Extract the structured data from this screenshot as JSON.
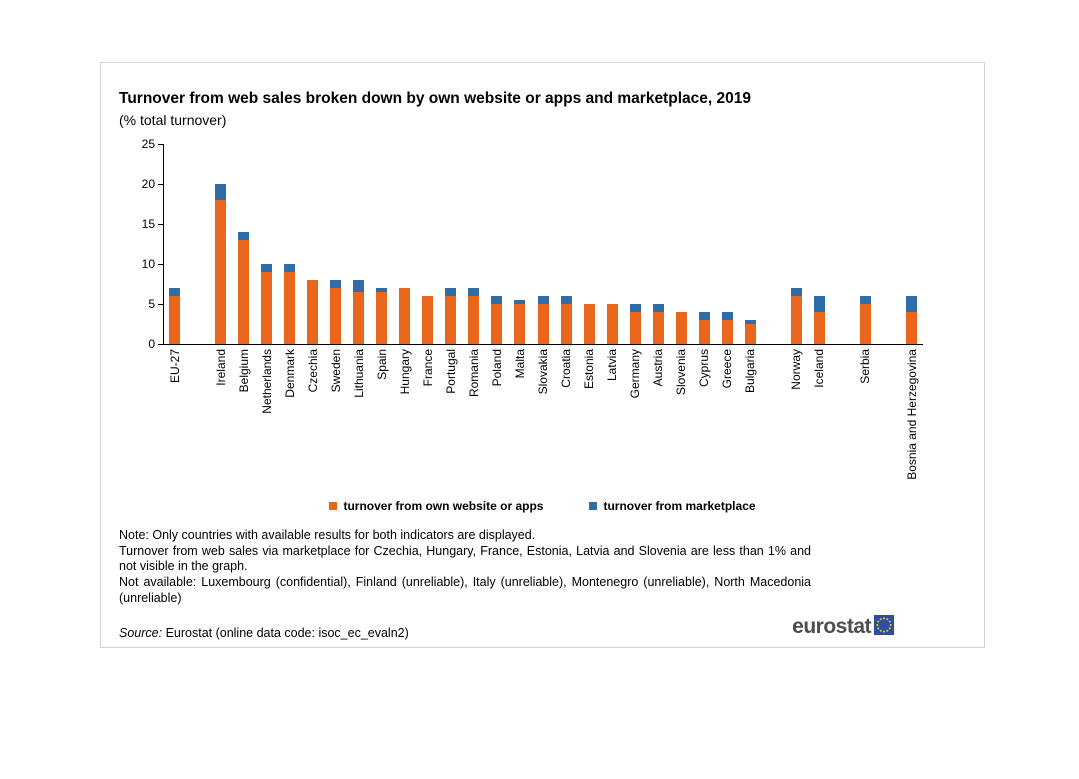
{
  "title": "Turnover from web sales broken down by own website or apps and marketplace, 2019",
  "subtitle": "(% total turnover)",
  "notes": [
    "Note: Only countries with available results for both indicators are displayed.",
    "Turnover from web sales via marketplace for Czechia, Hungary, France, Estonia, Latvia and Slovenia are less than 1% and not visible in the graph.",
    "Not available: Luxembourg (confidential), Finland (unreliable), Italy (unreliable), Montenegro (unreliable), North Macedonia (unreliable)"
  ],
  "source": {
    "prefix": "Source:",
    "text": " Eurostat (online data code: isoc_ec_evaln2)"
  },
  "logo": {
    "text": "eurostat",
    "flag_color": "#2B4EA2",
    "star_color": "#FFCC00"
  },
  "chart_data": {
    "type": "bar",
    "stacked": true,
    "title": "Turnover from web sales broken down by own website or apps and marketplace, 2019",
    "subtitle": "(% total turnover)",
    "ylim": [
      0,
      25
    ],
    "yticks": [
      0,
      5,
      10,
      15,
      20,
      25
    ],
    "grid": false,
    "legend_position": "bottom",
    "categories": [
      "EU-27",
      "",
      "Ireland",
      "Belgium",
      "Netherlands",
      "Denmark",
      "Czechia",
      "Sweden",
      "Lithuania",
      "Spain",
      "Hungary",
      "France",
      "Portugal",
      "Romania",
      "Poland",
      "Malta",
      "Slovakia",
      "Croatia",
      "Estonia",
      "Latvia",
      "Germany",
      "Austria",
      "Slovenia",
      "Cyprus",
      "Greece",
      "Bulgaria",
      "",
      "Norway",
      "Iceland",
      "",
      "Serbia",
      "",
      "Bosnia and Herzegovina"
    ],
    "series": [
      {
        "name": "turnover from own website or apps",
        "color": "#EA661C",
        "values": [
          6,
          null,
          18,
          13,
          9,
          9,
          8,
          7,
          6.5,
          6.5,
          7,
          6,
          6,
          6,
          5,
          5,
          5,
          5,
          5,
          5,
          4,
          4,
          4,
          3,
          3,
          2.5,
          null,
          6,
          4,
          null,
          5,
          null,
          4
        ]
      },
      {
        "name": "turnover from marketplace",
        "color": "#2F6DA4",
        "values": [
          1,
          null,
          2,
          1,
          1,
          1,
          0,
          1,
          1.5,
          0.5,
          0,
          0,
          1,
          1,
          1,
          0.5,
          1,
          1,
          0,
          0,
          1,
          1,
          0,
          1,
          1,
          0.5,
          null,
          1,
          2,
          null,
          1,
          null,
          2
        ]
      }
    ]
  }
}
